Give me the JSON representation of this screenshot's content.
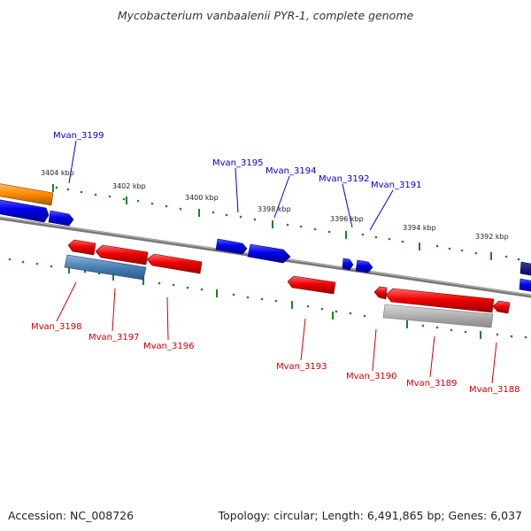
{
  "header": {
    "title": "Mycobacterium vanbaalenii PYR-1, complete genome"
  },
  "footer": {
    "accession": "Accession: NC_008726",
    "summary": "Topology: circular; Length: 6,491,865 bp; Genes: 6,037"
  },
  "scale": {
    "ticks": [
      "3404 kbp",
      "3402 kbp",
      "3400 kbp",
      "3398 kbp",
      "3396 kbp",
      "3394 kbp",
      "3392 kbp"
    ]
  },
  "genes_forward": [
    "Mvan_3199",
    "Mvan_3195",
    "Mvan_3194",
    "Mvan_3192",
    "Mvan_3191"
  ],
  "genes_reverse": [
    "Mvan_3198",
    "Mvan_3197",
    "Mvan_3196",
    "Mvan_3193",
    "Mvan_3190",
    "Mvan_3189",
    "Mvan_3188"
  ],
  "colors": {
    "forward_cds": "#0000ee",
    "reverse_cds": "#ee0000",
    "forward_gene_highlight": "#ff8c00",
    "reverse_gene_grey": "#b0b0b0",
    "reverse_gene_steel": "#4a7fb5",
    "backbone": "#808080",
    "tick": "#2a7a2a",
    "forward_label": "#0000cc",
    "reverse_label": "#cc0000"
  }
}
